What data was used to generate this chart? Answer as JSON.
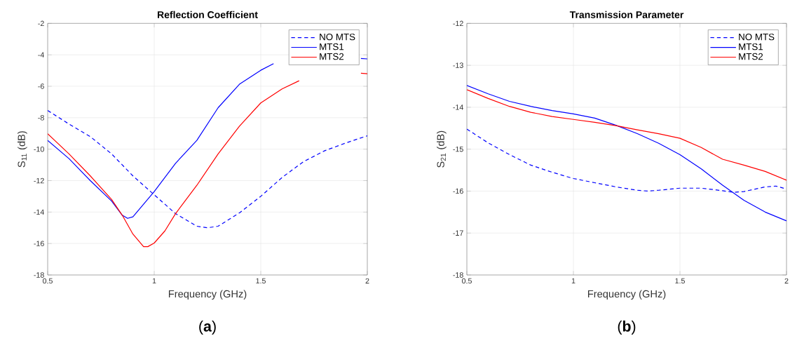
{
  "chart_data": [
    {
      "type": "line",
      "title": "Reflection Coefficient",
      "xlabel": "Frequency (GHz)",
      "ylabel": "S$_{11}$ (dB)",
      "xlim": [
        0.5,
        2
      ],
      "ylim": [
        -18,
        -2
      ],
      "xticks": [
        0.5,
        1,
        1.5,
        2
      ],
      "yticks": [
        -18,
        -16,
        -14,
        -12,
        -10,
        -8,
        -6,
        -4,
        -2
      ],
      "grid": true,
      "legend": "top right",
      "annotations": [
        "(**a**)"
      ],
      "series": [
        {
          "name": "NO MTS",
          "color": "#0000ff",
          "line_style": "dashed",
          "x": [
            0.5,
            0.6,
            0.7,
            0.8,
            0.9,
            1.0,
            1.1,
            1.2,
            1.25,
            1.3,
            1.4,
            1.5,
            1.6,
            1.7,
            1.8,
            1.9,
            2.0
          ],
          "values": [
            -7.54,
            -8.4,
            -9.2,
            -10.3,
            -11.7,
            -12.9,
            -14.1,
            -14.9,
            -15.0,
            -14.9,
            -14.05,
            -13.0,
            -11.8,
            -10.8,
            -10.1,
            -9.6,
            -9.15
          ]
        },
        {
          "name": "MTS1",
          "color": "#0000ff",
          "line_style": "solid",
          "x": [
            0.5,
            0.6,
            0.7,
            0.8,
            0.85,
            0.875,
            0.9,
            0.95,
            1.0,
            1.1,
            1.2,
            1.3,
            1.4,
            1.5,
            1.56,
            1.7,
            1.8,
            1.9,
            1.97,
            2.0
          ],
          "values": [
            -9.44,
            -10.6,
            -12.0,
            -13.3,
            -14.2,
            -14.4,
            -14.3,
            -13.5,
            -12.7,
            -10.9,
            -9.44,
            -7.36,
            -5.87,
            -4.98,
            -4.56,
            null,
            null,
            null,
            -4.23,
            -4.26
          ]
        },
        {
          "name": "MTS2",
          "color": "#ff0000",
          "line_style": "solid",
          "x": [
            0.5,
            0.6,
            0.7,
            0.8,
            0.85,
            0.9,
            0.95,
            0.97,
            1.0,
            1.05,
            1.1,
            1.2,
            1.3,
            1.4,
            1.5,
            1.6,
            1.68,
            1.8,
            1.9,
            1.97,
            2.0
          ],
          "values": [
            -9.02,
            -10.3,
            -11.7,
            -13.2,
            -14.2,
            -15.4,
            -16.2,
            -16.2,
            -15.97,
            -15.2,
            -14.1,
            -12.3,
            -10.3,
            -8.54,
            -7.06,
            -6.17,
            -5.65,
            null,
            null,
            -5.17,
            -5.2
          ]
        }
      ]
    },
    {
      "type": "line",
      "title": "Transmission Parameter",
      "xlabel": "Frequency (GHz)",
      "ylabel": "S$_{21}$ (dB)",
      "xlim": [
        0.5,
        2
      ],
      "ylim": [
        -18,
        -12
      ],
      "xticks": [
        0.5,
        1,
        1.5,
        2
      ],
      "yticks": [
        -18,
        -17,
        -16,
        -15,
        -14,
        -13,
        -12
      ],
      "grid": true,
      "legend": "top right",
      "annotations": [
        "(**b**)"
      ],
      "series": [
        {
          "name": "NO MTS",
          "color": "#0000ff",
          "line_style": "dashed",
          "x": [
            0.5,
            0.6,
            0.7,
            0.8,
            0.9,
            1.0,
            1.1,
            1.2,
            1.3,
            1.35,
            1.4,
            1.5,
            1.6,
            1.7,
            1.75,
            1.8,
            1.9,
            1.95,
            2.0
          ],
          "values": [
            -14.52,
            -14.85,
            -15.13,
            -15.38,
            -15.55,
            -15.7,
            -15.8,
            -15.9,
            -15.98,
            -16.0,
            -15.98,
            -15.93,
            -15.93,
            -15.99,
            -16.03,
            -16.01,
            -15.9,
            -15.88,
            -15.95
          ]
        },
        {
          "name": "MTS1",
          "color": "#0000ff",
          "line_style": "solid",
          "x": [
            0.5,
            0.6,
            0.7,
            0.8,
            0.9,
            1.0,
            1.1,
            1.2,
            1.3,
            1.4,
            1.5,
            1.6,
            1.7,
            1.8,
            1.9,
            2.0
          ],
          "values": [
            -13.48,
            -13.68,
            -13.86,
            -13.98,
            -14.08,
            -14.16,
            -14.26,
            -14.43,
            -14.63,
            -14.86,
            -15.13,
            -15.47,
            -15.86,
            -16.22,
            -16.5,
            -16.71
          ]
        },
        {
          "name": "MTS2",
          "color": "#ff0000",
          "line_style": "solid",
          "x": [
            0.5,
            0.6,
            0.7,
            0.8,
            0.9,
            1.0,
            1.1,
            1.2,
            1.3,
            1.4,
            1.5,
            1.6,
            1.7,
            1.8,
            1.9,
            2.0
          ],
          "values": [
            -13.58,
            -13.79,
            -13.98,
            -14.12,
            -14.22,
            -14.29,
            -14.36,
            -14.44,
            -14.54,
            -14.63,
            -14.74,
            -14.96,
            -15.24,
            -15.38,
            -15.53,
            -15.74
          ]
        }
      ]
    }
  ]
}
